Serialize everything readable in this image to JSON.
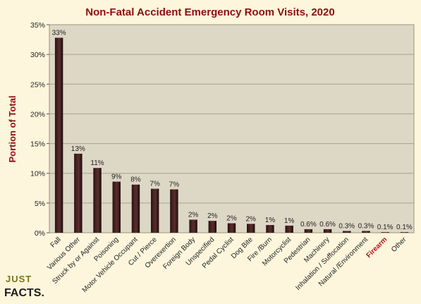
{
  "chart_data": {
    "type": "bar",
    "title": "Non-Fatal Accident Emergency Room Visits, 2020",
    "ylabel": "Portion of Total",
    "xlabel": "",
    "ylim": [
      0,
      35
    ],
    "yticks": [
      "0%",
      "5%",
      "10%",
      "15%",
      "20%",
      "25%",
      "30%",
      "35%"
    ],
    "grid": true,
    "legend": "none",
    "categories": [
      "Fall",
      "Various Other",
      "Struck by or Against",
      "Poisoning",
      "Motor Vehicle Occupant",
      "Cut / Pierce",
      "Overexertion",
      "Foreign Body",
      "Unspecified",
      "Pedal Cyclist",
      "Dog Bite",
      "Fire /Burn",
      "Motorcyclist",
      "Pedestrian",
      "Machinery",
      "Inhalation / Suffocation",
      "Natural /Environment",
      "Firearm",
      "Other"
    ],
    "values": [
      32.8,
      13.3,
      10.9,
      8.6,
      8.1,
      7.4,
      7.3,
      2.2,
      2.0,
      1.6,
      1.5,
      1.3,
      1.2,
      0.6,
      0.6,
      0.3,
      0.3,
      0.1,
      0.1
    ],
    "data_labels": [
      "33%",
      "13%",
      "11%",
      "9%",
      "8%",
      "7%",
      "7%",
      "2%",
      "2%",
      "2%",
      "2%",
      "1%",
      "1%",
      "0.6%",
      "0.6%",
      "0.3%",
      "0.3%",
      "0.1%",
      "0.1%"
    ],
    "highlight_category": "Firearm",
    "colors": {
      "background": "#fdf6dc",
      "plot_area": "#ddd7c5",
      "bar_dark": "#2a1414",
      "bar_light": "#6a3a3a",
      "title": "#8b0d12",
      "highlight_label": "#b0101a"
    }
  },
  "logo": {
    "line1": "JUST",
    "line2": "FACTS."
  }
}
